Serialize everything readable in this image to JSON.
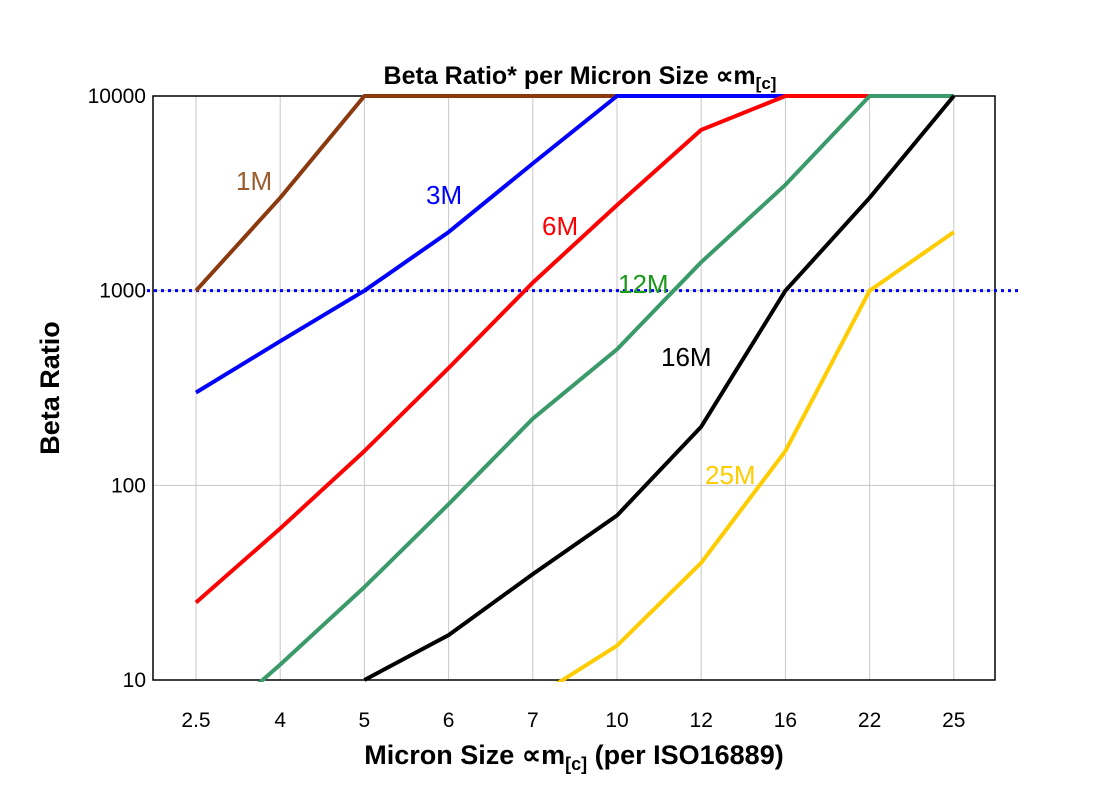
{
  "chart_data": {
    "type": "line",
    "title": "Beta Ratio* per Micron Size ∝m",
    "title_subscript": "[c]",
    "xlabel": "Micron Size ∝m",
    "xlabel_subscript": "[c]",
    "xlabel_suffix": " (per ISO16889)",
    "ylabel": "Beta Ratio",
    "y_scale": "log",
    "ylim": [
      10,
      10000
    ],
    "y_ticks": [
      "10000",
      "1000",
      "100",
      "10"
    ],
    "y_tick_values": [
      10000,
      1000,
      100,
      10
    ],
    "grid": true,
    "categories": [
      "2.5",
      "4",
      "5",
      "6",
      "7",
      "10",
      "12",
      "16",
      "22",
      "25"
    ],
    "reference_line": {
      "value": 1000,
      "color": "#0000ff",
      "style": "dotted"
    },
    "series": [
      {
        "name": "1M",
        "color": "#8b3a0f",
        "label_color": "#9c5b2c",
        "values": [
          1000,
          3000,
          10000,
          10000,
          10000,
          10000,
          null,
          null,
          null,
          null
        ]
      },
      {
        "name": "3M",
        "color": "#0000ff",
        "label_color": "#0000ff",
        "values": [
          300,
          550,
          1000,
          2000,
          4500,
          10000,
          10000,
          10000,
          10000,
          10000
        ]
      },
      {
        "name": "6M",
        "color": "#ff0000",
        "label_color": "#ff0000",
        "values": [
          25,
          60,
          150,
          400,
          1100,
          2750,
          6700,
          10000,
          10000,
          10000
        ]
      },
      {
        "name": "12M",
        "color": "#3a9a6a",
        "label_color": "#1a9a1a",
        "values": [
          5,
          12,
          30,
          80,
          220,
          500,
          1400,
          3500,
          10000,
          10000
        ]
      },
      {
        "name": "16M",
        "color": "#000000",
        "label_color": "#000000",
        "values": [
          null,
          null,
          10,
          17,
          35,
          70,
          200,
          1000,
          3000,
          10000
        ]
      },
      {
        "name": "25M",
        "color": "#ffcc00",
        "label_color": "#ffcc00",
        "values": [
          null,
          null,
          null,
          null,
          8,
          15,
          40,
          150,
          1000,
          2000
        ]
      }
    ]
  }
}
